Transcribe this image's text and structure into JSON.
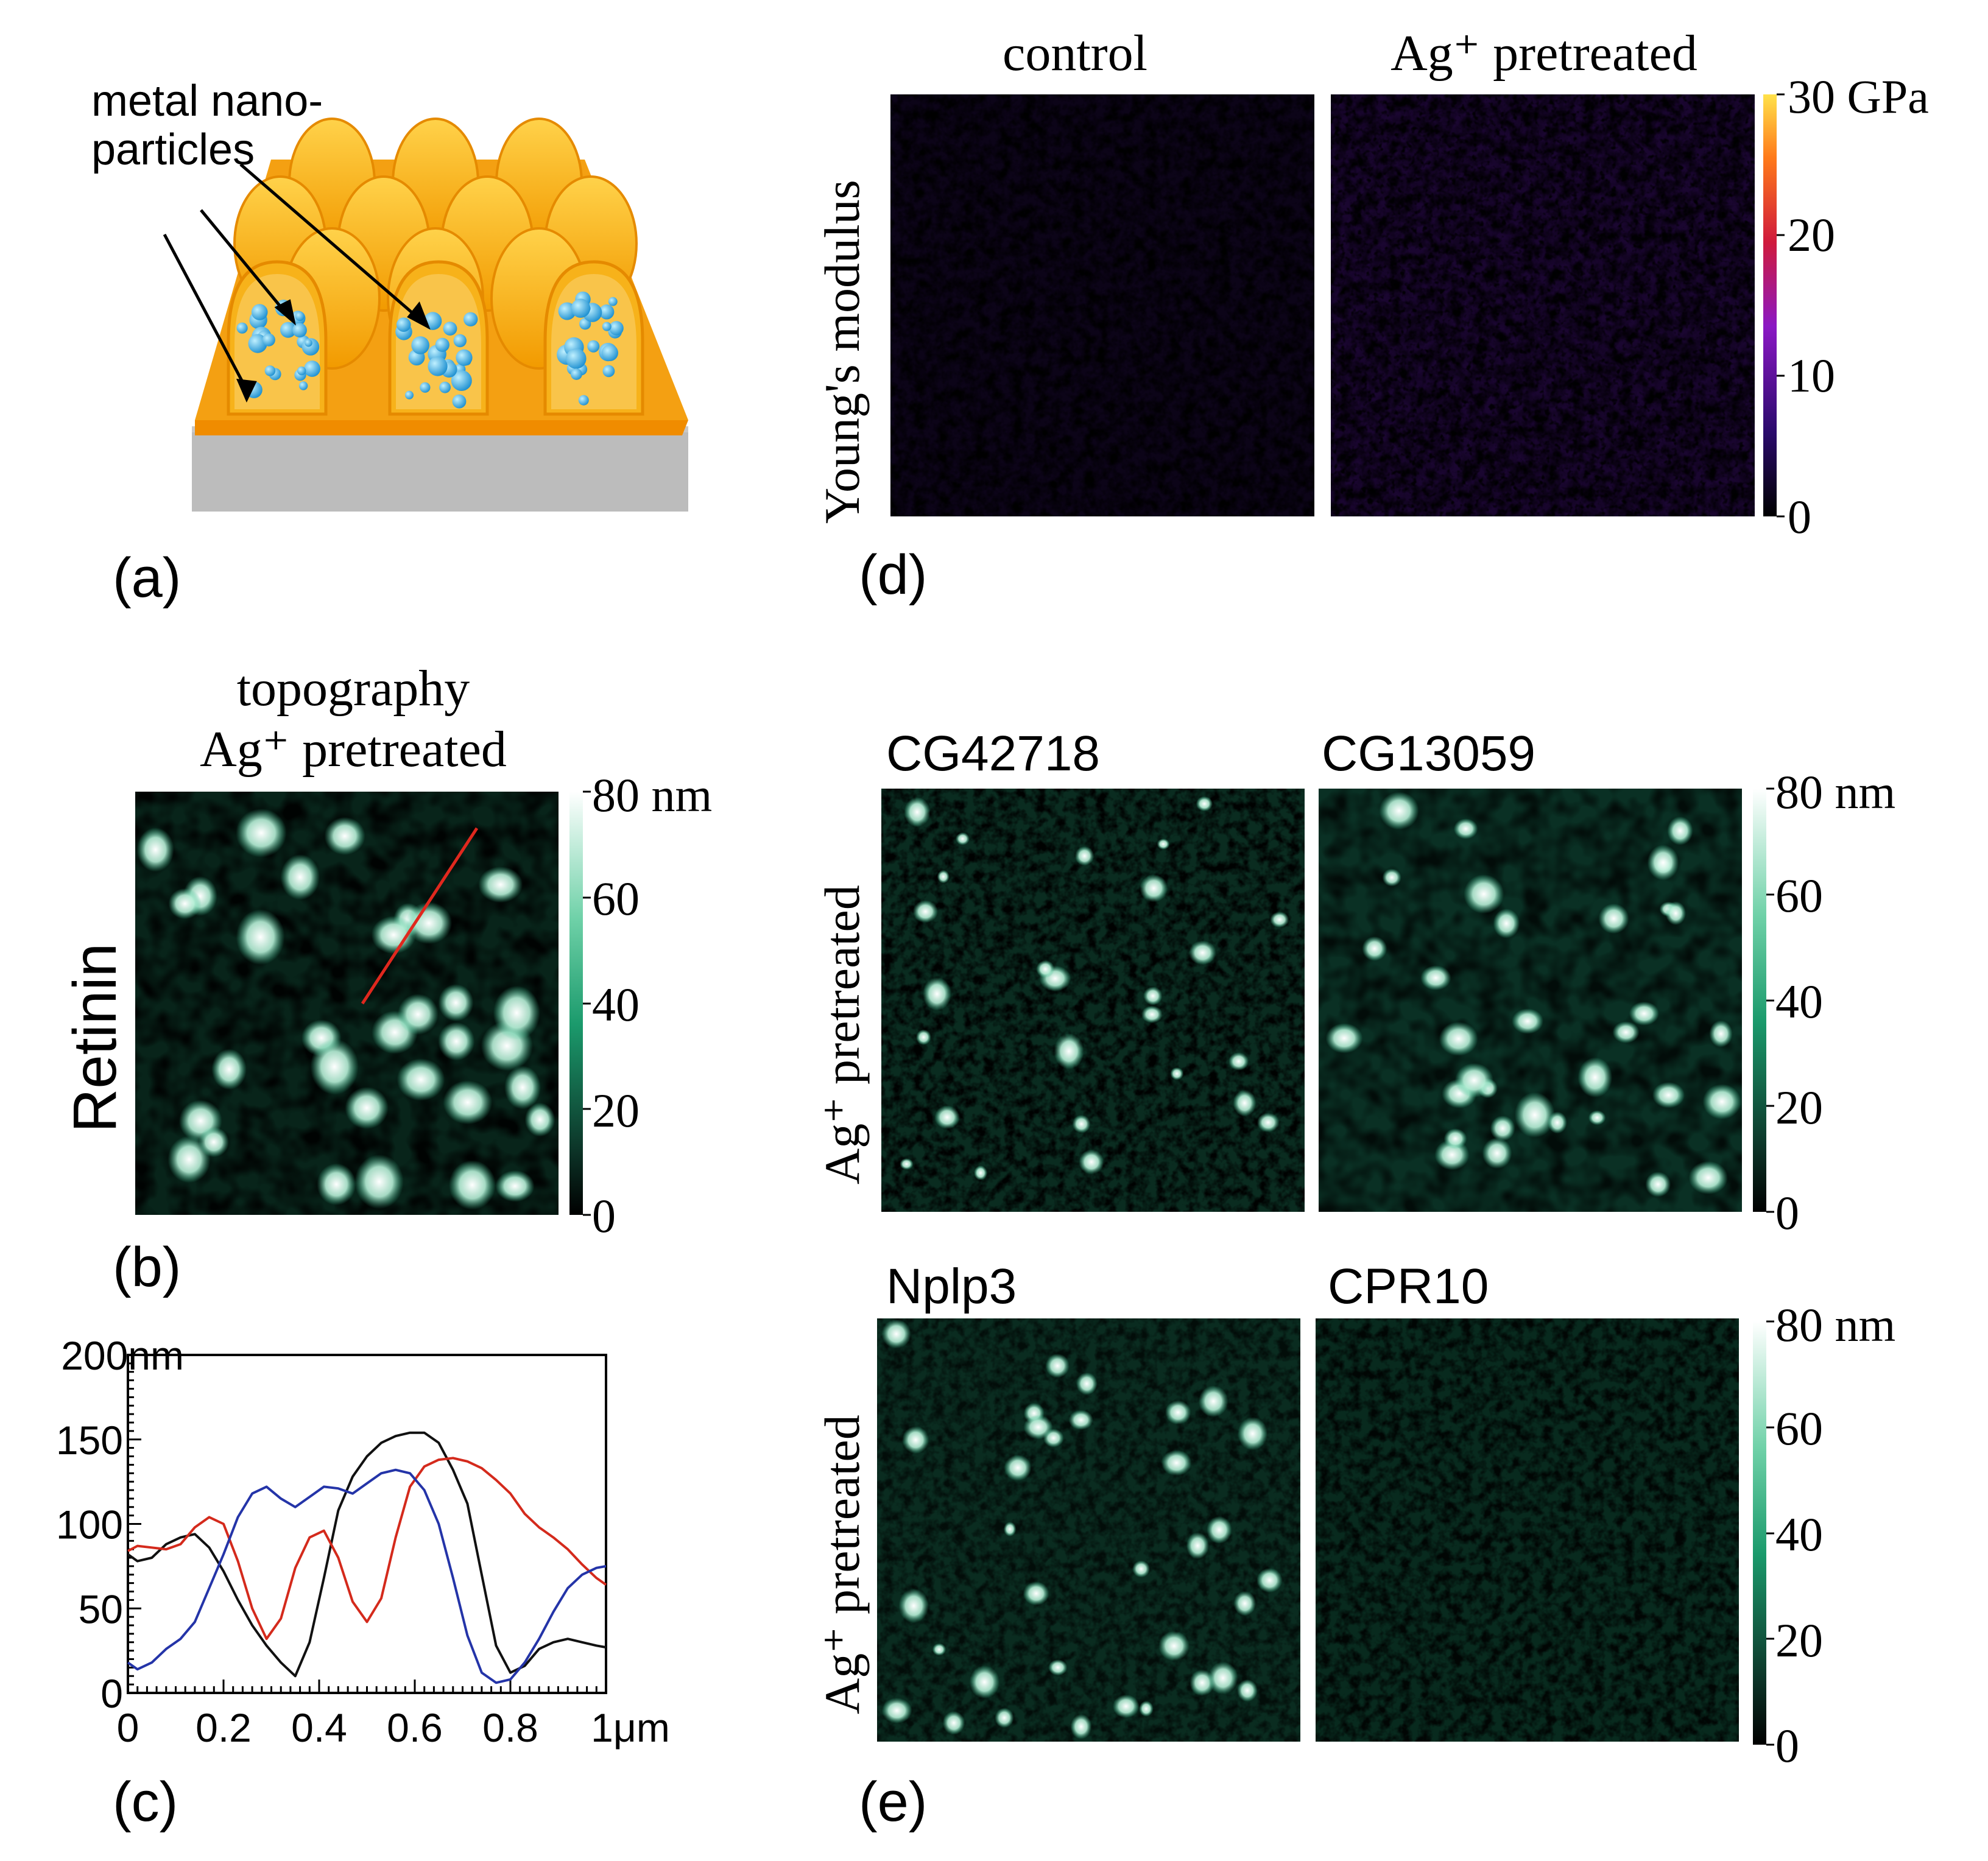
{
  "panel_a": {
    "label": "(a)",
    "annotation_line1": "metal nano-",
    "annotation_line2": "particles",
    "colors": {
      "dome": "#f6b400",
      "dome_edge": "#e58a00",
      "base": "#f08c00",
      "particle": "#2aa6e6",
      "substrate": "#bdbdbd"
    }
  },
  "panel_b": {
    "label": "(b)",
    "title_line1": "topography",
    "title_line2": "Ag⁺ pretreated",
    "row_label": "Retinin",
    "colorbar": {
      "ticks": [
        "80 nm",
        "60",
        "40",
        "20",
        "0"
      ],
      "min": 0,
      "max": 80,
      "unit": "nm"
    },
    "profile_line_color": "#e0281e"
  },
  "panel_c": {
    "label": "(c)"
  },
  "panel_d": {
    "label": "(d)",
    "y_label": "Young's modulus",
    "map_titles": [
      "control",
      "Ag⁺ pretreated"
    ],
    "colorbar": {
      "ticks": [
        "30 GPa",
        "20",
        "10",
        "0"
      ],
      "min": 0,
      "max": 30,
      "unit": "GPa"
    }
  },
  "panel_e": {
    "label": "(e)",
    "row1": {
      "y_label": "Ag⁺ pretreated",
      "titles": [
        "CG42718",
        "CG13059"
      ]
    },
    "row2": {
      "y_label": "Ag⁺ pretreated",
      "titles": [
        "Nplp3",
        "CPR10"
      ]
    },
    "colorbar": {
      "ticks": [
        "80 nm",
        "60",
        "40",
        "20",
        "0"
      ],
      "min": 0,
      "max": 80,
      "unit": "nm"
    }
  },
  "chart_data": {
    "type": "line",
    "title": "",
    "xlabel": "",
    "ylabel": "",
    "xlim": [
      0,
      1
    ],
    "ylim": [
      0,
      200
    ],
    "x_ticks": [
      "0",
      "0.2",
      "0.4",
      "0.6",
      "0.8",
      "1μm"
    ],
    "y_ticks": [
      "0",
      "50",
      "100",
      "150",
      "200nm"
    ],
    "x": [
      0,
      0.02,
      0.05,
      0.08,
      0.11,
      0.14,
      0.17,
      0.2,
      0.23,
      0.26,
      0.29,
      0.32,
      0.35,
      0.38,
      0.41,
      0.44,
      0.47,
      0.5,
      0.53,
      0.56,
      0.59,
      0.62,
      0.65,
      0.68,
      0.71,
      0.74,
      0.77,
      0.8,
      0.83,
      0.86,
      0.89,
      0.92,
      0.95,
      0.98,
      1.0
    ],
    "series": [
      {
        "name": "black",
        "color": "#111111",
        "values": [
          82,
          78,
          80,
          88,
          92,
          94,
          86,
          72,
          55,
          40,
          28,
          18,
          10,
          30,
          68,
          108,
          128,
          140,
          148,
          152,
          154,
          154,
          148,
          132,
          112,
          70,
          28,
          12,
          16,
          26,
          30,
          32,
          30,
          28,
          27
        ]
      },
      {
        "name": "red",
        "color": "#d42a1c",
        "values": [
          84,
          87,
          86,
          85,
          88,
          98,
          104,
          100,
          78,
          50,
          32,
          44,
          74,
          92,
          96,
          80,
          54,
          42,
          56,
          92,
          122,
          134,
          138,
          139,
          137,
          133,
          126,
          118,
          106,
          98,
          92,
          85,
          76,
          68,
          64
        ]
      },
      {
        "name": "blue",
        "color": "#2434a8",
        "values": [
          18,
          14,
          18,
          26,
          32,
          42,
          62,
          82,
          104,
          118,
          122,
          115,
          110,
          116,
          122,
          121,
          118,
          124,
          130,
          132,
          130,
          120,
          100,
          68,
          34,
          12,
          6,
          8,
          18,
          32,
          48,
          62,
          70,
          74,
          75
        ]
      }
    ]
  }
}
